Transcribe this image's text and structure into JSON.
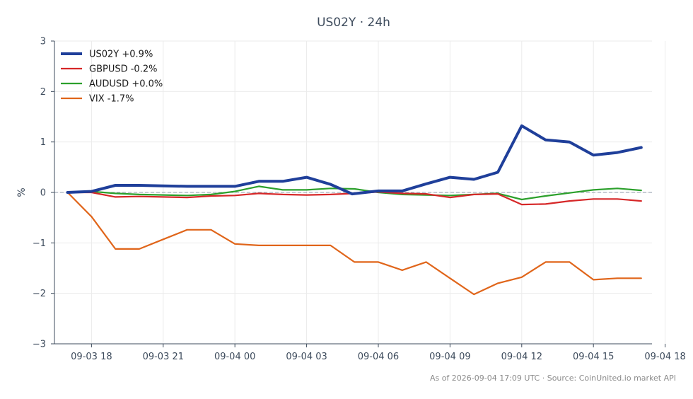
{
  "chart_data": {
    "type": "line",
    "title": "US02Y · 24h",
    "ylabel": "%",
    "xlabel": "",
    "ylim": [
      -3,
      3
    ],
    "yticks": [
      3,
      2,
      1,
      0,
      -1,
      -2,
      -3
    ],
    "ytick_labels": [
      "3",
      "2",
      "1",
      "0",
      "−1",
      "−2",
      "−3"
    ],
    "xlim": [
      16.45,
      41.45
    ],
    "xticks": [
      {
        "x": 18,
        "label": "09-03 18"
      },
      {
        "x": 21,
        "label": "09-03 21"
      },
      {
        "x": 24,
        "label": "09-04 00"
      },
      {
        "x": 27,
        "label": "09-04 03"
      },
      {
        "x": 30,
        "label": "09-04 06"
      },
      {
        "x": 33,
        "label": "09-04 09"
      },
      {
        "x": 36,
        "label": "09-04 12"
      },
      {
        "x": 39,
        "label": "09-04 15"
      },
      {
        "x": 42,
        "label": "09-04 18"
      }
    ],
    "grid": true,
    "zero_line": true,
    "legend_position": "top-left",
    "series": [
      {
        "name": "US02Y +0.9%",
        "color": "#1f3f9a",
        "width": 4,
        "x": [
          17,
          18,
          19,
          20,
          21,
          22,
          23,
          24,
          25,
          26,
          27,
          28,
          28.9,
          30,
          31,
          32,
          33,
          34,
          35,
          36,
          37,
          38,
          39,
          40,
          41
        ],
        "y": [
          0.0,
          0.02,
          0.14,
          0.14,
          0.13,
          0.12,
          0.12,
          0.12,
          0.22,
          0.22,
          0.3,
          0.16,
          -0.03,
          0.03,
          0.03,
          0.17,
          0.3,
          0.26,
          0.4,
          1.32,
          1.04,
          1.0,
          0.74,
          0.79,
          0.89
        ]
      },
      {
        "name": "GBPUSD -0.2%",
        "color": "#d62728",
        "width": 2.2,
        "x": [
          17,
          18,
          19,
          20,
          21,
          22,
          23,
          24,
          25,
          26,
          27,
          28,
          29,
          30,
          31,
          32,
          33,
          34,
          35,
          36,
          37,
          38,
          39,
          40,
          41
        ],
        "y": [
          0.0,
          0.0,
          -0.09,
          -0.08,
          -0.09,
          -0.1,
          -0.07,
          -0.06,
          -0.02,
          -0.04,
          -0.05,
          -0.04,
          -0.02,
          0.01,
          -0.02,
          -0.03,
          -0.1,
          -0.04,
          -0.03,
          -0.24,
          -0.23,
          -0.17,
          -0.13,
          -0.13,
          -0.17
        ]
      },
      {
        "name": "AUDUSD +0.0%",
        "color": "#2ca02c",
        "width": 2.2,
        "x": [
          17,
          18,
          19,
          20,
          21,
          22,
          23,
          24,
          25,
          26,
          27,
          28,
          29,
          30,
          31,
          32,
          33,
          34,
          35,
          36,
          37,
          38,
          39,
          40,
          41
        ],
        "y": [
          0.01,
          0.02,
          -0.02,
          -0.04,
          -0.05,
          -0.06,
          -0.04,
          0.02,
          0.12,
          0.05,
          0.05,
          0.08,
          0.07,
          0.0,
          -0.04,
          -0.05,
          -0.06,
          -0.04,
          -0.02,
          -0.14,
          -0.07,
          -0.01,
          0.05,
          0.08,
          0.04
        ]
      },
      {
        "name": "VIX -1.7%",
        "color": "#e0651a",
        "width": 2.2,
        "x": [
          17,
          18,
          19,
          20,
          21,
          22,
          23,
          24,
          25,
          26,
          27,
          28,
          29,
          30,
          31,
          32,
          33,
          34,
          35,
          36,
          37,
          38,
          39,
          40,
          41
        ],
        "y": [
          0.0,
          -0.48,
          -1.12,
          -1.12,
          -0.93,
          -0.74,
          -0.74,
          -1.02,
          -1.05,
          -1.05,
          -1.05,
          -1.05,
          -1.38,
          -1.38,
          -1.54,
          -1.38,
          -1.7,
          -2.02,
          -1.8,
          -1.68,
          -1.38,
          -1.38,
          -1.73,
          -1.7,
          -1.7
        ]
      }
    ]
  },
  "footer": "As of 2026-09-04 17:09 UTC · Source: CoinUnited.io market API"
}
